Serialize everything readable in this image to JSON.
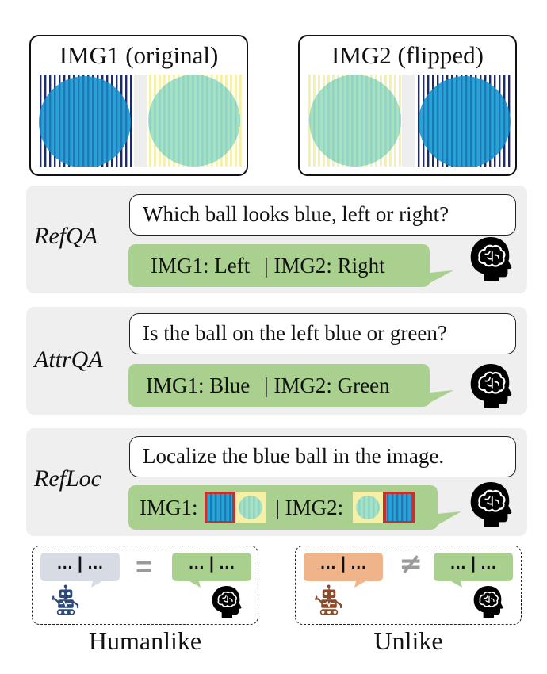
{
  "images": [
    {
      "title": "IMG1 (original)"
    },
    {
      "title": "IMG2 (flipped)"
    }
  ],
  "tasks": [
    {
      "label": "RefQA",
      "question": "Which ball looks blue, left or right?",
      "answer": {
        "img1": "IMG1: Left",
        "img2": "| IMG2: Right"
      }
    },
    {
      "label": "AttrQA",
      "question": "Is the ball on the left blue or green?",
      "answer": {
        "img1": "IMG1: Blue",
        "img2": "| IMG2: Green"
      }
    },
    {
      "label": "RefLoc",
      "question": "Localize the blue ball in the image.",
      "answer": {
        "img1": "IMG1:",
        "img2": "| IMG2:"
      }
    }
  ],
  "legend": {
    "humanlike": {
      "label": "Humanlike",
      "model_text": "… | …",
      "human_text": "… | …",
      "relation": "="
    },
    "unlike": {
      "label": "Unlike",
      "model_text": "… | …",
      "human_text": "… | …",
      "relation": "≠"
    }
  },
  "colors": {
    "blue_ball": "#27a3d6",
    "green_ball": "#a6e1c3",
    "dark_stripe": "#1f2a6b",
    "yellow_stripe": "#f6f0a6",
    "answer_bubble": "#a9d08e",
    "panel_bg": "#efefef",
    "box_red": "#c0322b",
    "model_bubble_grey": "#d7dbe3",
    "model_bubble_orange": "#f0b48a",
    "robot_blue": "#2d4a7a",
    "robot_brown": "#8b4a2a"
  },
  "icons": [
    "brain-head-icon",
    "robot-icon",
    "equals-icon",
    "not-equals-icon"
  ]
}
